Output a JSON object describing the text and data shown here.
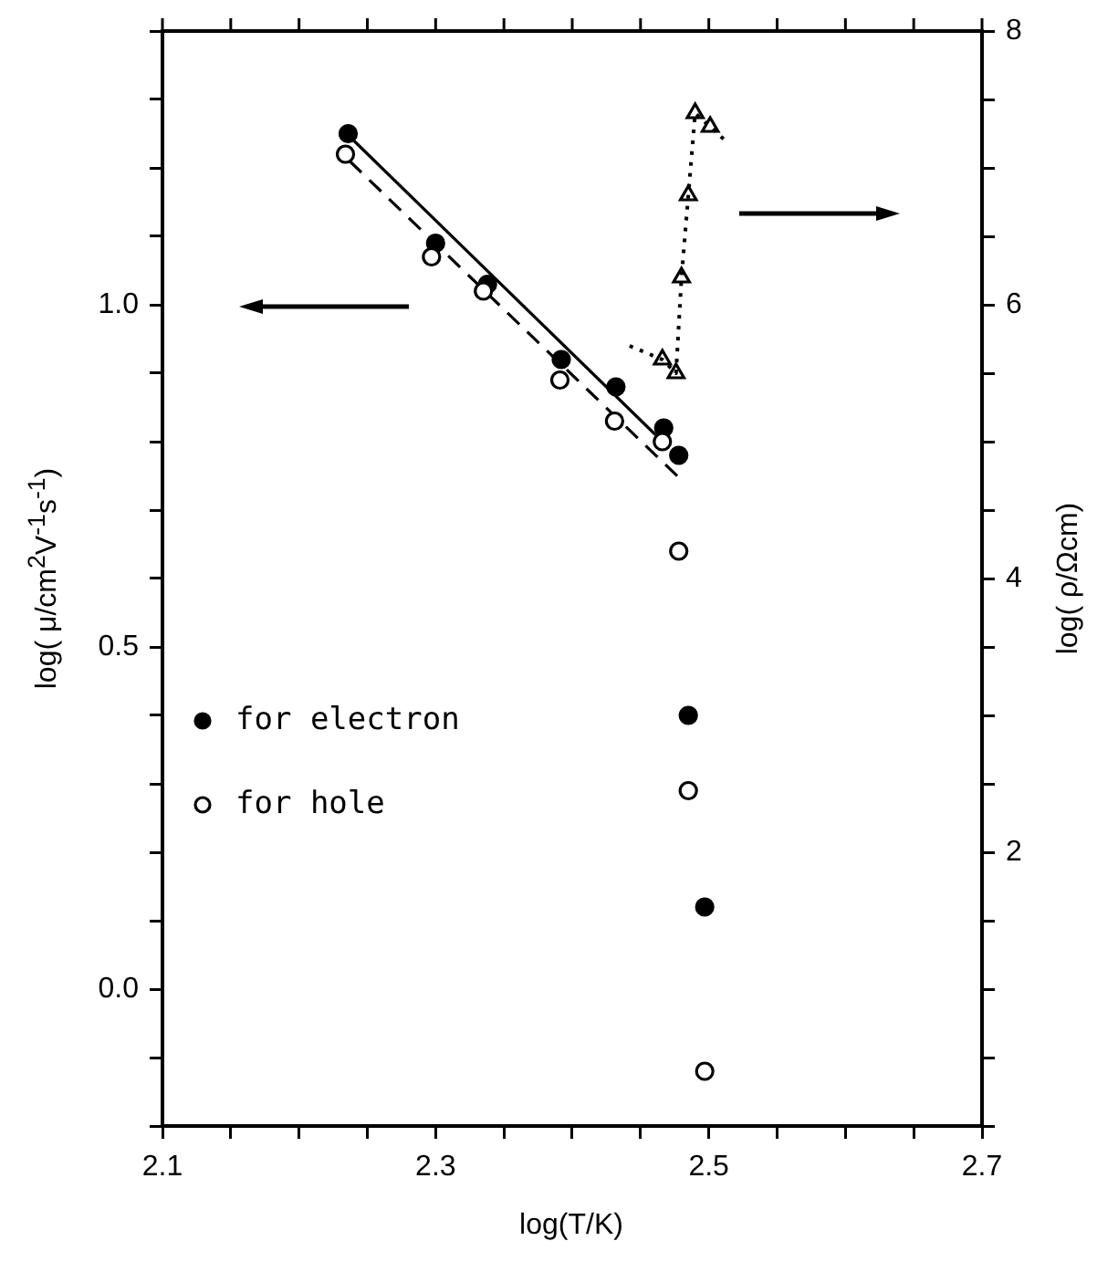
{
  "chart_data": {
    "type": "scatter",
    "xlabel": "log(T/K)",
    "ylabel": "log( μ/cm$^{2}$V$^{-1}$s$^{-1}$)",
    "y2label": "log( ρ/Ωcm)",
    "xlim": [
      2.1,
      2.7
    ],
    "xticks": [
      2.1,
      {
        "value": 2.15,
        "label": null
      },
      {
        "value": 2.2,
        "label": null
      },
      {
        "value": 2.25,
        "label": null
      },
      2.3,
      {
        "value": 2.35,
        "label": null
      },
      {
        "value": 2.4,
        "label": null
      },
      {
        "value": 2.45,
        "label": null
      },
      2.5,
      {
        "value": 2.55,
        "label": null
      },
      {
        "value": 2.6,
        "label": null
      },
      {
        "value": 2.65,
        "label": null
      },
      2.7
    ],
    "ylim": [
      -0.2,
      1.4
    ],
    "yticks": [
      {
        "value": -0.2,
        "label": null
      },
      {
        "value": -0.1,
        "label": null
      },
      {
        "value": 0,
        "label": "0.0"
      },
      {
        "value": 0.1,
        "label": null
      },
      {
        "value": 0.2,
        "label": null
      },
      {
        "value": 0.3,
        "label": null
      },
      {
        "value": 0.4,
        "label": null
      },
      {
        "value": 0.5,
        "label": "0.5"
      },
      {
        "value": 0.6,
        "label": null
      },
      {
        "value": 0.7,
        "label": null
      },
      {
        "value": 0.8,
        "label": null
      },
      {
        "value": 0.9,
        "label": null
      },
      {
        "value": 1,
        "label": "1.0"
      },
      {
        "value": 1.1,
        "label": null
      },
      {
        "value": 1.2,
        "label": null
      },
      {
        "value": 1.3,
        "label": null
      },
      {
        "value": 1.4,
        "label": null
      }
    ],
    "y2lim": [
      0,
      8
    ],
    "y2ticks": [
      {
        "value": 0,
        "label": null
      },
      {
        "value": 0.5,
        "label": null
      },
      {
        "value": 1,
        "label": null
      },
      {
        "value": 1.5,
        "label": null
      },
      2,
      {
        "value": 2.5,
        "label": null
      },
      {
        "value": 3,
        "label": null
      },
      {
        "value": 3.5,
        "label": null
      },
      4,
      {
        "value": 4.5,
        "label": null
      },
      {
        "value": 5,
        "label": null
      },
      {
        "value": 5.5,
        "label": null
      },
      6,
      {
        "value": 6.5,
        "label": null
      },
      {
        "value": 7,
        "label": null
      },
      {
        "value": 7.5,
        "label": null
      },
      8
    ],
    "grid": false,
    "legend": "left",
    "series": [
      {
        "name": "for electron",
        "type": "scatter",
        "marker": "circle",
        "color": "#000000",
        "x": [
          2.236,
          2.3,
          2.338,
          2.392,
          2.432,
          2.467,
          2.478,
          2.485,
          2.497
        ],
        "values": [
          1.25,
          1.09,
          1.03,
          0.92,
          0.88,
          0.82,
          0.78,
          0.4,
          0.12
        ]
      },
      {
        "name": "for hole",
        "type": "scatter",
        "marker": "circle",
        "color": "#000000",
        "x": [
          2.234,
          2.297,
          2.335,
          2.391,
          2.431,
          2.466,
          2.478,
          2.485,
          2.497
        ],
        "values": [
          1.22,
          1.07,
          1.02,
          0.89,
          0.83,
          0.8,
          0.64,
          0.29,
          -0.12
        ]
      },
      {
        "type": "line",
        "marker": "none",
        "line_style": "solid",
        "color": "#000000",
        "x": [
          2.24,
          2.461
        ],
        "values": [
          1.24,
          0.81
        ]
      },
      {
        "type": "line",
        "marker": "none",
        "line_style": "dashed",
        "color": "#000000",
        "x": [
          2.237,
          2.482
        ],
        "values": [
          1.21,
          0.74
        ]
      },
      {
        "type": "line",
        "axis": "y2",
        "marker": "none",
        "line_style": "dotted",
        "color": "#000000",
        "x": [
          2.442,
          2.466,
          2.476,
          2.48,
          2.485,
          2.49,
          2.501,
          2.512
        ],
        "values": [
          5.7,
          5.6,
          5.5,
          6.2,
          6.8,
          7.4,
          7.3,
          7.2
        ]
      },
      {
        "type": "scatter",
        "axis": "y2",
        "marker": "triangle",
        "color": "#000000",
        "x": [
          2.466,
          2.476,
          2.48,
          2.485,
          2.49,
          2.501
        ],
        "values": [
          5.6,
          5.5,
          6.2,
          6.8,
          7.4,
          7.3
        ]
      }
    ]
  }
}
